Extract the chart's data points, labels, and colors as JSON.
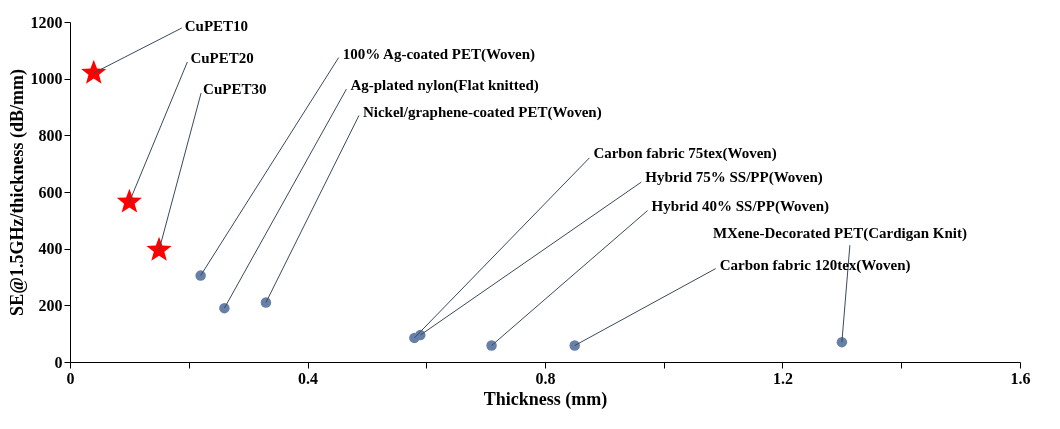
{
  "chart_data": {
    "type": "scatter",
    "xlabel": "Thickness (mm)",
    "ylabel": "SE@1.5GHz/thickness (dB/mm)",
    "xlim": [
      0,
      1.6
    ],
    "ylim": [
      0,
      1200
    ],
    "xticks": [
      0,
      {
        "value": 0.2,
        "label": null
      },
      0.4,
      {
        "value": 0.6,
        "label": null
      },
      0.8,
      {
        "value": 1.0,
        "label": null
      },
      1.2,
      {
        "value": 1.4,
        "label": null
      },
      1.6
    ],
    "yticks": [
      0,
      200,
      400,
      600,
      800,
      1000,
      1200
    ],
    "grid": false,
    "series": [
      {
        "color": "#ff0000",
        "marker": "star",
        "x": [
          0.04,
          0.1,
          0.15
        ],
        "values": [
          1020,
          565,
          395
        ]
      },
      {
        "color": "#6680a8",
        "marker": "circle",
        "x": [
          0.22,
          0.26,
          0.33,
          0.58,
          0.59,
          0.71,
          0.85,
          1.3
        ],
        "values": [
          305,
          190,
          210,
          85,
          95,
          58,
          58,
          70
        ]
      }
    ],
    "annotations": [
      {
        "text": "CuPET10",
        "x": 0.04,
        "y": 1020
      },
      {
        "text": "CuPET20",
        "x": 0.1,
        "y": 565
      },
      {
        "text": "CuPET30",
        "x": 0.15,
        "y": 395
      },
      {
        "text": "100% Ag-coated PET(Woven)",
        "x": 0.22,
        "y": 305
      },
      {
        "text": "Ag-plated nylon(Flat knitted)",
        "x": 0.26,
        "y": 190
      },
      {
        "text": "Nickel/graphene-coated PET(Woven)",
        "x": 0.33,
        "y": 210
      },
      {
        "text": "Carbon fabric 75tex(Woven)",
        "x": 0.58,
        "y": 85
      },
      {
        "text": "Hybrid 75% SS/PP(Woven)",
        "x": 0.59,
        "y": 95
      },
      {
        "text": "Hybrid 40% SS/PP(Woven)",
        "x": 0.71,
        "y": 58
      },
      {
        "text": "Carbon fabric 120tex(Woven)",
        "x": 0.85,
        "y": 58
      },
      {
        "text": "MXene-Decorated PET(Cardigan Knit)",
        "x": 1.3,
        "y": 70
      }
    ]
  }
}
